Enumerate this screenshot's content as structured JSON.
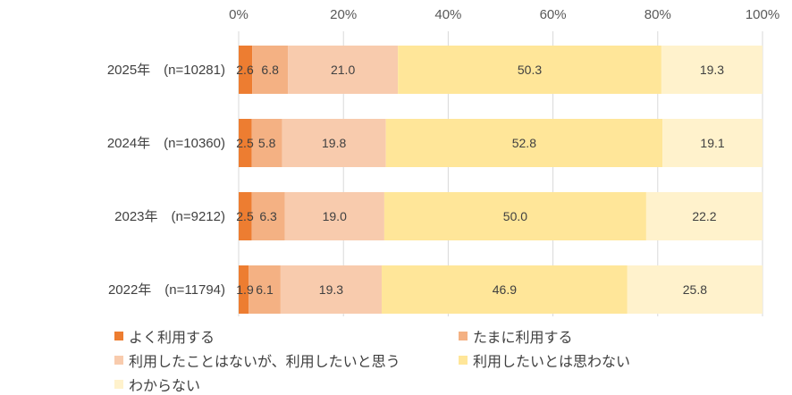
{
  "chart_data": {
    "type": "bar",
    "orientation": "horizontal",
    "stacked": true,
    "percent": true,
    "xlim": [
      0,
      100
    ],
    "x_ticks": [
      "0%",
      "20%",
      "40%",
      "60%",
      "80%",
      "100%"
    ],
    "x_tick_values": [
      0,
      20,
      40,
      60,
      80,
      100
    ],
    "grid": true,
    "legend_position": "bottom",
    "categories": [
      "2025年　(n=10281)",
      "2024年　(n=10360)",
      "2023年　(n=9212)",
      "2022年　(n=11794)"
    ],
    "series": [
      {
        "name": "よく利用する",
        "color": "#ED7D31",
        "values": [
          2.6,
          2.5,
          2.5,
          1.9
        ]
      },
      {
        "name": "たまに利用する",
        "color": "#F4B183",
        "values": [
          6.8,
          5.8,
          6.3,
          6.1
        ]
      },
      {
        "name": "利用したことはないが、利用したいと思う",
        "color": "#F8CBAD",
        "values": [
          21.0,
          19.8,
          19.0,
          19.3
        ]
      },
      {
        "name": "利用したいとは思わない",
        "color": "#FFE699",
        "values": [
          50.3,
          52.8,
          50.0,
          46.9
        ]
      },
      {
        "name": "わからない",
        "color": "#FFF2CC",
        "values": [
          19.3,
          19.1,
          22.2,
          25.8
        ]
      }
    ],
    "title": "",
    "xlabel": "",
    "ylabel": ""
  }
}
